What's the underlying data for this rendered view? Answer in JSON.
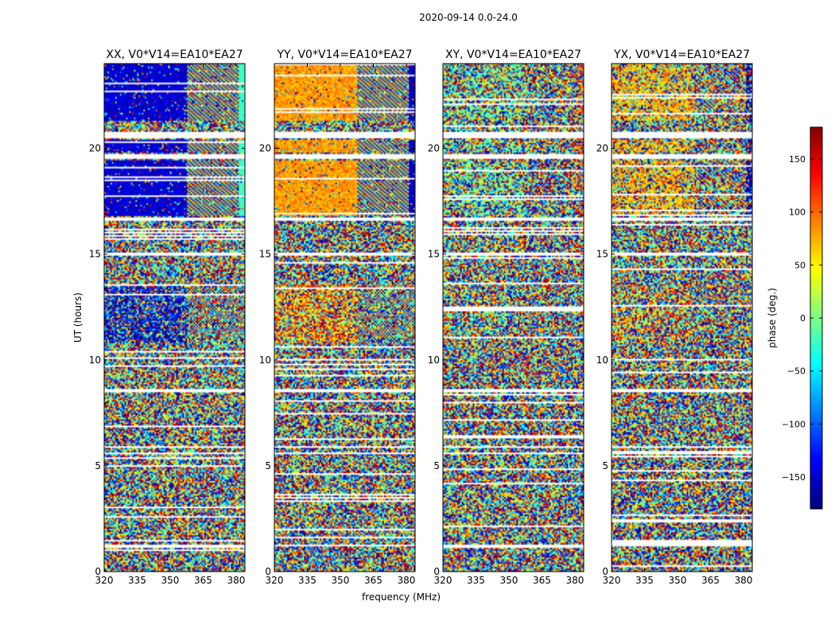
{
  "suptitle": "2020-09-14 0.0-24.0",
  "chart_data": {
    "type": "heatmap",
    "panels": [
      {
        "title": "XX, V0*V14=EA10*EA27",
        "pol": "XX",
        "dominant_phase_deg": -150,
        "structure_level": 0.9
      },
      {
        "title": "YY, V0*V14=EA10*EA27",
        "pol": "YY",
        "dominant_phase_deg": 80,
        "structure_level": 0.9
      },
      {
        "title": "XY, V0*V14=EA10*EA27",
        "pol": "XY",
        "dominant_phase_deg": -10,
        "structure_level": 0.25
      },
      {
        "title": "YX, V0*V14=EA10*EA27",
        "pol": "YX",
        "dominant_phase_deg": 70,
        "structure_level": 0.45
      }
    ],
    "xlabel": "frequency (MHz)",
    "ylabel": "UT (hours)",
    "xlim": [
      320,
      384
    ],
    "ylim": [
      0,
      24
    ],
    "xticks": [
      320,
      335,
      350,
      365,
      380
    ],
    "yticks": [
      0,
      5,
      10,
      15,
      20
    ],
    "colorbar": {
      "label": "phase (deg.)",
      "range": [
        -180,
        180
      ],
      "ticks": [
        -150,
        -100,
        -50,
        0,
        50,
        100,
        150
      ],
      "tick_labels": [
        "−150",
        "−100",
        "−50",
        "0",
        "50",
        "100",
        "150"
      ],
      "colormap": "jet"
    },
    "coherent_hour_ranges": [
      [
        16.8,
        19.4
      ],
      [
        19.8,
        20.4
      ],
      [
        21.3,
        24.0
      ]
    ],
    "semi_coherent_hour_ranges": [
      [
        10.8,
        13.6
      ]
    ],
    "flagged_hour_ranges": [
      [
        20.45,
        20.75
      ],
      [
        19.5,
        19.7
      ],
      [
        5.85,
        5.95
      ],
      [
        8.5,
        8.6
      ],
      [
        14.95,
        15.05
      ],
      [
        16.6,
        16.7
      ]
    ],
    "rfi_edge_channel_range_mhz": [
      381,
      384
    ],
    "fringe_channel_range_mhz": [
      358,
      381
    ]
  }
}
